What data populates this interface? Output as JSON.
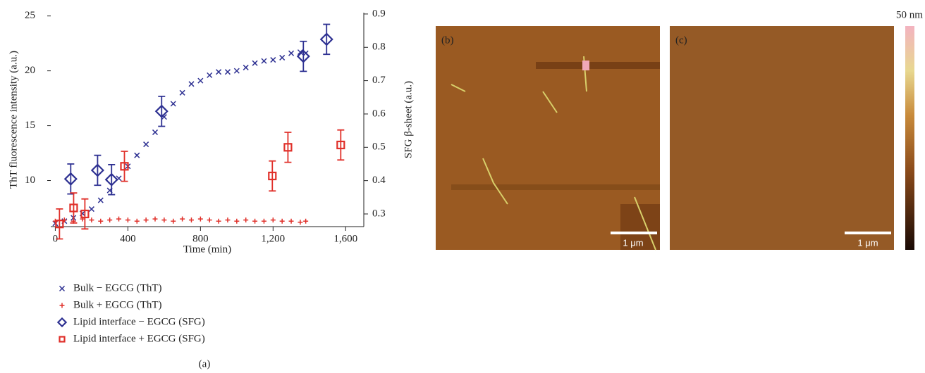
{
  "chart_data": {
    "type": "scatter",
    "x_label": "Time (min)",
    "y_label": "ThT fluorescence intensity (a.u.)",
    "y2_label": "SFG β-sheet (a.u.)",
    "caption": "(a)",
    "xlim": [
      -25,
      1700
    ],
    "xticks": [
      0,
      400,
      800,
      {
        "value": 1200,
        "label": "1,200"
      },
      {
        "value": 1600,
        "label": "1,600"
      }
    ],
    "ylim": [
      5.8,
      25.3
    ],
    "yticks": [
      10,
      15,
      20,
      25
    ],
    "y2lim": [
      0.262,
      0.904
    ],
    "y2ticks": [
      0.3,
      0.4,
      0.5,
      0.6,
      0.7,
      0.8,
      0.9
    ],
    "series": [
      {
        "name": "Bulk − EGCG (ThT)",
        "color": "#2e3192",
        "marker": "x",
        "x": [
          0,
          50,
          100,
          150,
          200,
          250,
          300,
          350,
          400,
          450,
          500,
          550,
          600,
          650,
          700,
          750,
          800,
          850,
          900,
          950,
          1000,
          1050,
          1100,
          1150,
          1200,
          1250,
          1300,
          1350,
          1380
        ],
        "values": [
          6.1,
          6.3,
          6.6,
          7.0,
          7.4,
          8.2,
          9.1,
          10.2,
          11.3,
          12.3,
          13.3,
          14.4,
          15.8,
          17.0,
          18.0,
          18.8,
          19.1,
          19.6,
          19.9,
          19.9,
          20.0,
          20.3,
          20.7,
          20.9,
          21.0,
          21.2,
          21.6,
          21.7,
          21.6
        ]
      },
      {
        "name": "Bulk + EGCG (ThT)",
        "color": "#e0302a",
        "marker": "plus",
        "x": [
          0,
          50,
          100,
          150,
          200,
          250,
          300,
          350,
          400,
          450,
          500,
          550,
          600,
          650,
          700,
          750,
          800,
          850,
          900,
          950,
          1000,
          1050,
          1100,
          1150,
          1200,
          1250,
          1300,
          1350,
          1380
        ],
        "values": [
          6.3,
          6.4,
          6.3,
          6.5,
          6.4,
          6.3,
          6.4,
          6.5,
          6.4,
          6.3,
          6.4,
          6.5,
          6.4,
          6.3,
          6.5,
          6.4,
          6.5,
          6.4,
          6.3,
          6.4,
          6.3,
          6.4,
          6.3,
          6.3,
          6.4,
          6.3,
          6.3,
          6.2,
          6.3
        ]
      },
      {
        "name": "Lipid interface − EGCG (SFG)",
        "color": "#2e3192",
        "marker": "diamond",
        "axis": "y2",
        "x": [
          85,
          233,
          310,
          586,
          1367,
          1495
        ],
        "values": [
          0.405,
          0.431,
          0.403,
          0.608,
          0.773,
          0.824
        ],
        "errors": [
          0.045,
          0.045,
          0.045,
          0.045,
          0.045,
          0.045
        ]
      },
      {
        "name": "Lipid interface + EGCG (SFG)",
        "color": "#e0302a",
        "marker": "square",
        "axis": "y2",
        "x": [
          23,
          101,
          163,
          381,
          1196,
          1282,
          1573
        ],
        "values": [
          0.27,
          0.318,
          0.3,
          0.443,
          0.414,
          0.5,
          0.507
        ],
        "errors": [
          0.045,
          0.045,
          0.045,
          0.045,
          0.045,
          0.045,
          0.045
        ]
      }
    ]
  },
  "panels": {
    "b": {
      "label": "(b)",
      "scale_bar": "1 μm"
    },
    "c": {
      "label": "(c)",
      "scale_bar": "1 μm"
    },
    "colorbar_label": "50 nm"
  }
}
